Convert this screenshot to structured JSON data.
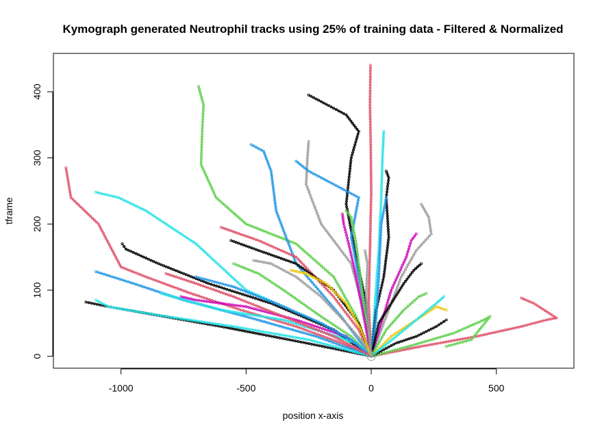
{
  "chart_data": {
    "type": "line",
    "title": "Kymograph generated Neutrophil tracks using 25% of training data - Filtered & Normalized",
    "xlabel": "position x-axis",
    "ylabel": "tframe",
    "xlim": [
      -1270,
      810
    ],
    "ylim": [
      -18,
      458
    ],
    "x_ticks": [
      -1000,
      -500,
      0,
      500
    ],
    "x_tick_labels": [
      "-1000",
      "-500",
      "0",
      "500"
    ],
    "y_ticks": [
      0,
      100,
      200,
      300,
      400
    ],
    "y_tick_labels": [
      "0",
      "100",
      "200",
      "300",
      "400"
    ],
    "grid": false,
    "legend": "none",
    "marker": "open-circle",
    "series": [
      {
        "color": "#DF536B",
        "points": [
          [
            0,
            0
          ],
          [
            -120,
            20
          ],
          [
            -300,
            45
          ],
          [
            -520,
            70
          ],
          [
            -720,
            95
          ],
          [
            -900,
            120
          ],
          [
            -1000,
            135
          ],
          [
            -1090,
            200
          ],
          [
            -1200,
            240
          ],
          [
            -1220,
            285
          ]
        ]
      },
      {
        "color": "#61D04F",
        "points": [
          [
            0,
            0
          ],
          [
            -60,
            60
          ],
          [
            -150,
            120
          ],
          [
            -300,
            170
          ],
          [
            -500,
            200
          ],
          [
            -620,
            240
          ],
          [
            -680,
            290
          ],
          [
            -675,
            345
          ],
          [
            -670,
            380
          ],
          [
            -690,
            408
          ]
        ]
      },
      {
        "color": "#000000",
        "points": [
          [
            0,
            0
          ],
          [
            -20,
            80
          ],
          [
            -60,
            150
          ],
          [
            -100,
            230
          ],
          [
            -80,
            300
          ],
          [
            -50,
            340
          ],
          [
            -100,
            365
          ],
          [
            -200,
            385
          ],
          [
            -250,
            395
          ]
        ]
      },
      {
        "color": "#DF536B",
        "points": [
          [
            0,
            0
          ],
          [
            -10,
            80
          ],
          [
            -5,
            160
          ],
          [
            0,
            250
          ],
          [
            -2,
            320
          ],
          [
            -5,
            380
          ],
          [
            -3,
            440
          ]
        ]
      },
      {
        "color": "#2297E6",
        "points": [
          [
            0,
            0
          ],
          [
            -120,
            60
          ],
          [
            -300,
            140
          ],
          [
            -380,
            220
          ],
          [
            -400,
            280
          ],
          [
            -430,
            310
          ],
          [
            -480,
            320
          ]
        ]
      },
      {
        "color": "#28E2E5",
        "points": [
          [
            0,
            0
          ],
          [
            15,
            80
          ],
          [
            30,
            160
          ],
          [
            40,
            240
          ],
          [
            45,
            300
          ],
          [
            50,
            340
          ]
        ]
      },
      {
        "color": "#9E9E9E",
        "points": [
          [
            0,
            0
          ],
          [
            -30,
            70
          ],
          [
            -80,
            140
          ],
          [
            -200,
            200
          ],
          [
            -260,
            260
          ],
          [
            -255,
            300
          ],
          [
            -250,
            325
          ]
        ]
      },
      {
        "color": "#2297E6",
        "points": [
          [
            0,
            0
          ],
          [
            -40,
            100
          ],
          [
            -80,
            180
          ],
          [
            -50,
            240
          ],
          [
            -150,
            260
          ],
          [
            -250,
            280
          ],
          [
            -300,
            295
          ]
        ]
      },
      {
        "color": "#000000",
        "points": [
          [
            0,
            0
          ],
          [
            20,
            70
          ],
          [
            50,
            120
          ],
          [
            70,
            180
          ],
          [
            60,
            240
          ],
          [
            70,
            270
          ],
          [
            60,
            280
          ]
        ]
      },
      {
        "color": "#28E2E5",
        "points": [
          [
            0,
            0
          ],
          [
            -200,
            50
          ],
          [
            -500,
            100
          ],
          [
            -700,
            170
          ],
          [
            -900,
            220
          ],
          [
            -1010,
            240
          ],
          [
            -1100,
            248
          ]
        ]
      },
      {
        "color": "#000000",
        "points": [
          [
            0,
            0
          ],
          [
            -150,
            40
          ],
          [
            -400,
            80
          ],
          [
            -650,
            110
          ],
          [
            -850,
            140
          ],
          [
            -980,
            162
          ],
          [
            -995,
            170
          ]
        ]
      },
      {
        "color": "#2297E6",
        "points": [
          [
            0,
            0
          ],
          [
            -220,
            30
          ],
          [
            -500,
            60
          ],
          [
            -750,
            85
          ],
          [
            -950,
            110
          ],
          [
            -1100,
            128
          ]
        ]
      },
      {
        "color": "#000000",
        "points": [
          [
            0,
            0
          ],
          [
            -260,
            20
          ],
          [
            -600,
            45
          ],
          [
            -900,
            65
          ],
          [
            -1050,
            75
          ],
          [
            -1140,
            82
          ]
        ]
      },
      {
        "color": "#28E2E5",
        "points": [
          [
            0,
            0
          ],
          [
            -250,
            25
          ],
          [
            -550,
            45
          ],
          [
            -850,
            62
          ],
          [
            -1050,
            75
          ],
          [
            -1100,
            85
          ]
        ]
      },
      {
        "color": "#DF536B",
        "points": [
          [
            0,
            0
          ],
          [
            200,
            15
          ],
          [
            420,
            30
          ],
          [
            600,
            45
          ],
          [
            700,
            55
          ],
          [
            740,
            58
          ],
          [
            650,
            80
          ],
          [
            600,
            88
          ]
        ]
      },
      {
        "color": "#61D04F",
        "points": [
          [
            0,
            0
          ],
          [
            150,
            15
          ],
          [
            330,
            35
          ],
          [
            450,
            55
          ],
          [
            475,
            60
          ],
          [
            400,
            25
          ],
          [
            300,
            15
          ]
        ]
      },
      {
        "color": "#9E9E9E",
        "points": [
          [
            0,
            0
          ],
          [
            60,
            60
          ],
          [
            120,
            120
          ],
          [
            180,
            160
          ],
          [
            240,
            185
          ],
          [
            230,
            210
          ],
          [
            200,
            230
          ]
        ]
      },
      {
        "color": "#CD0BBC",
        "points": [
          [
            0,
            0
          ],
          [
            40,
            50
          ],
          [
            80,
            100
          ],
          [
            140,
            150
          ],
          [
            160,
            175
          ],
          [
            180,
            185
          ]
        ]
      },
      {
        "color": "#F5C710",
        "points": [
          [
            0,
            0
          ],
          [
            80,
            30
          ],
          [
            180,
            55
          ],
          [
            260,
            75
          ],
          [
            300,
            70
          ]
        ]
      },
      {
        "color": "#2297E6",
        "points": [
          [
            0,
            0
          ],
          [
            20,
            60
          ],
          [
            30,
            120
          ],
          [
            40,
            200
          ],
          [
            60,
            240
          ]
        ]
      },
      {
        "color": "#DF536B",
        "points": [
          [
            0,
            0
          ],
          [
            -50,
            40
          ],
          [
            -150,
            90
          ],
          [
            -300,
            150
          ],
          [
            -450,
            175
          ],
          [
            -600,
            195
          ]
        ]
      },
      {
        "color": "#61D04F",
        "points": [
          [
            0,
            0
          ],
          [
            -80,
            30
          ],
          [
            -200,
            60
          ],
          [
            -350,
            100
          ],
          [
            -450,
            125
          ],
          [
            -550,
            140
          ]
        ]
      },
      {
        "color": "#CD0BBC",
        "points": [
          [
            0,
            0
          ],
          [
            -100,
            30
          ],
          [
            -300,
            55
          ],
          [
            -500,
            75
          ],
          [
            -700,
            85
          ],
          [
            -760,
            90
          ]
        ]
      },
      {
        "color": "#000000",
        "points": [
          [
            0,
            0
          ],
          [
            -50,
            50
          ],
          [
            -150,
            100
          ],
          [
            -300,
            140
          ],
          [
            -450,
            160
          ],
          [
            -560,
            175
          ]
        ]
      },
      {
        "color": "#28E2E5",
        "points": [
          [
            0,
            0
          ],
          [
            -60,
            20
          ],
          [
            -180,
            35
          ],
          [
            -350,
            55
          ],
          [
            -600,
            70
          ],
          [
            -840,
            95
          ]
        ]
      },
      {
        "color": "#9E9E9E",
        "points": [
          [
            0,
            0
          ],
          [
            -30,
            20
          ],
          [
            -100,
            50
          ],
          [
            -200,
            90
          ],
          [
            -300,
            120
          ],
          [
            -400,
            140
          ],
          [
            -470,
            145
          ]
        ]
      },
      {
        "color": "#61D04F",
        "points": [
          [
            0,
            0
          ],
          [
            -20,
            50
          ],
          [
            -40,
            110
          ],
          [
            -60,
            170
          ],
          [
            -80,
            210
          ],
          [
            -100,
            220
          ]
        ]
      },
      {
        "color": "#000000",
        "points": [
          [
            0,
            0
          ],
          [
            30,
            50
          ],
          [
            80,
            80
          ],
          [
            130,
            110
          ],
          [
            170,
            130
          ],
          [
            200,
            140
          ]
        ]
      },
      {
        "color": "#CD0BBC",
        "points": [
          [
            0,
            0
          ],
          [
            -30,
            60
          ],
          [
            -60,
            120
          ],
          [
            -90,
            170
          ],
          [
            -110,
            200
          ],
          [
            -115,
            215
          ]
        ]
      },
      {
        "color": "#2297E6",
        "points": [
          [
            0,
            0
          ],
          [
            -80,
            25
          ],
          [
            -200,
            50
          ],
          [
            -380,
            80
          ],
          [
            -550,
            105
          ],
          [
            -700,
            120
          ]
        ]
      },
      {
        "color": "#DF536B",
        "points": [
          [
            0,
            0
          ],
          [
            -150,
            30
          ],
          [
            -350,
            60
          ],
          [
            -550,
            90
          ],
          [
            -700,
            110
          ],
          [
            -820,
            125
          ]
        ]
      },
      {
        "color": "#F5C710",
        "points": [
          [
            0,
            0
          ],
          [
            -40,
            40
          ],
          [
            -100,
            80
          ],
          [
            -180,
            110
          ],
          [
            -260,
            125
          ],
          [
            -320,
            130
          ]
        ]
      },
      {
        "color": "#000000",
        "points": [
          [
            0,
            0
          ],
          [
            100,
            20
          ],
          [
            180,
            30
          ],
          [
            260,
            45
          ],
          [
            300,
            55
          ]
        ]
      },
      {
        "color": "#28E2E5",
        "points": [
          [
            0,
            0
          ],
          [
            100,
            30
          ],
          [
            180,
            55
          ],
          [
            260,
            80
          ],
          [
            290,
            90
          ]
        ]
      },
      {
        "color": "#61D04F",
        "points": [
          [
            0,
            0
          ],
          [
            60,
            40
          ],
          [
            130,
            70
          ],
          [
            190,
            90
          ],
          [
            220,
            95
          ]
        ]
      },
      {
        "color": "#9E9E9E",
        "points": [
          [
            0,
            0
          ],
          [
            -10,
            40
          ],
          [
            -20,
            90
          ],
          [
            -15,
            140
          ],
          [
            -25,
            160
          ]
        ]
      }
    ]
  }
}
